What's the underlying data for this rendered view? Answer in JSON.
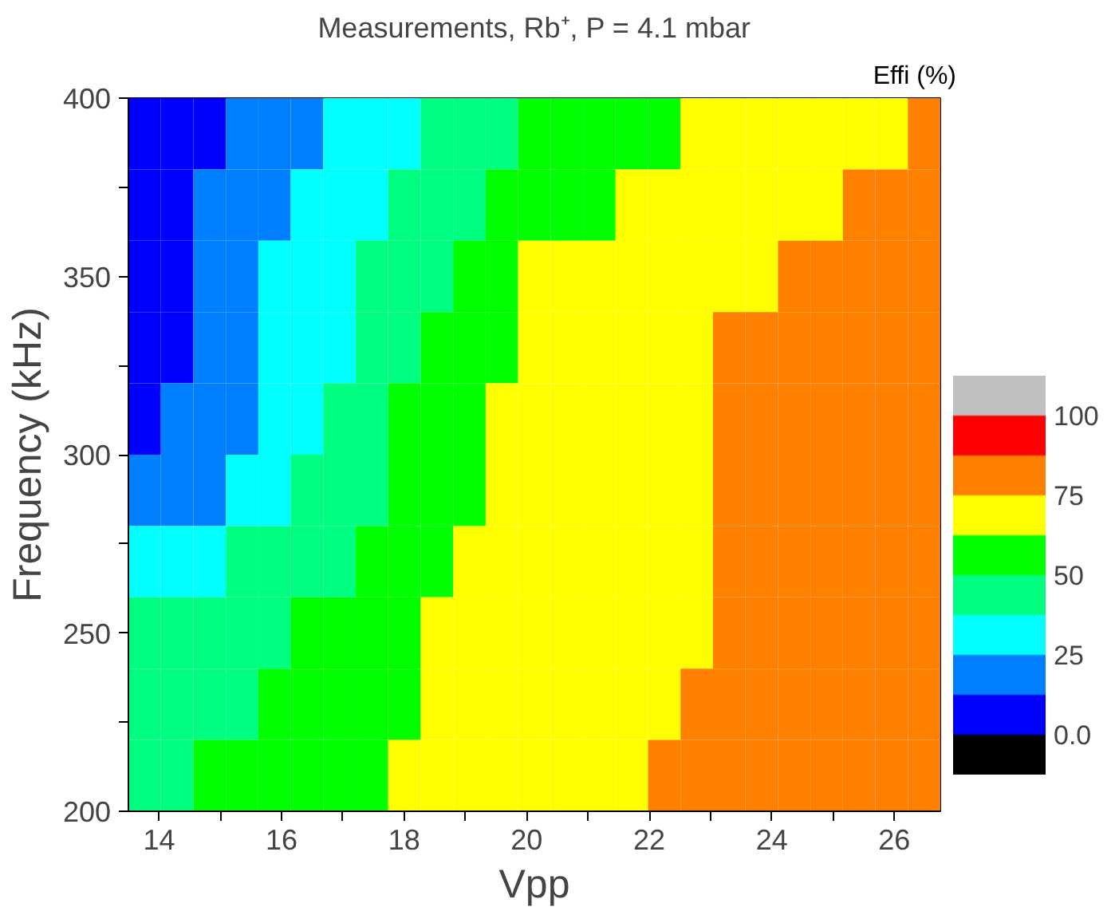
{
  "chart_data": {
    "type": "heatmap",
    "title": "Measurements, Rb⁺, P = 4.1 mbar",
    "xlabel": "Vpp",
    "ylabel": "Frequency (kHz)",
    "clabel": "Effi (%)",
    "xlim": [
      13.5,
      26.75
    ],
    "xticks": [
      14,
      {
        "value": 15,
        "label": null
      },
      16,
      {
        "value": 17,
        "label": null
      },
      18,
      {
        "value": 19,
        "label": null
      },
      20,
      {
        "value": 21,
        "label": null
      },
      22,
      {
        "value": 23,
        "label": null
      },
      24,
      {
        "value": 25,
        "label": null
      },
      26
    ],
    "ylim": [
      200,
      400
    ],
    "yticks": [
      200,
      {
        "value": 225,
        "label": null
      },
      250,
      {
        "value": 275,
        "label": null
      },
      300,
      {
        "value": 325,
        "label": null
      },
      350,
      {
        "value": 375,
        "label": null
      },
      400
    ],
    "clim": [
      -12.5,
      112.5
    ],
    "cticks": [
      {
        "value": 0,
        "label": "0.0"
      },
      25,
      50,
      75,
      100
    ],
    "colors": [
      "#000000",
      "#0000ff",
      "#0080ff",
      "#00ffff",
      "#00ff80",
      "#00ff00",
      "#ffff00",
      "#ff8000",
      "#ff0000",
      "#c0c0c0"
    ],
    "x": [
      13.765,
      14.295,
      14.825,
      15.355,
      15.885,
      16.415,
      16.945,
      17.475,
      18.005,
      18.535,
      19.065,
      19.595,
      20.125,
      20.655,
      21.185,
      21.715,
      22.245,
      22.775,
      23.305,
      23.835,
      24.365,
      24.895,
      25.425,
      25.955,
      26.485
    ],
    "y": [
      390,
      370,
      350,
      330,
      310,
      290,
      270,
      250,
      230,
      210
    ],
    "cells": [
      [
        6.25,
        6.25,
        6.25,
        18.75,
        18.75,
        18.75,
        31.25,
        31.25,
        31.25,
        43.75,
        43.75,
        43.75,
        56.25,
        56.25,
        56.25,
        56.25,
        56.25,
        68.75,
        68.75,
        68.75,
        68.75,
        68.75,
        68.75,
        68.75,
        81.25
      ],
      [
        6.25,
        6.25,
        18.75,
        18.75,
        18.75,
        31.25,
        31.25,
        31.25,
        43.75,
        43.75,
        43.75,
        56.25,
        56.25,
        56.25,
        56.25,
        68.75,
        68.75,
        68.75,
        68.75,
        68.75,
        68.75,
        68.75,
        81.25,
        81.25,
        81.25
      ],
      [
        6.25,
        6.25,
        18.75,
        18.75,
        31.25,
        31.25,
        31.25,
        43.75,
        43.75,
        43.75,
        56.25,
        56.25,
        68.75,
        68.75,
        68.75,
        68.75,
        68.75,
        68.75,
        68.75,
        68.75,
        81.25,
        81.25,
        81.25,
        81.25,
        81.25
      ],
      [
        6.25,
        6.25,
        18.75,
        18.75,
        31.25,
        31.25,
        31.25,
        43.75,
        43.75,
        56.25,
        56.25,
        56.25,
        68.75,
        68.75,
        68.75,
        68.75,
        68.75,
        68.75,
        81.25,
        81.25,
        81.25,
        81.25,
        81.25,
        81.25,
        81.25
      ],
      [
        6.25,
        18.75,
        18.75,
        18.75,
        31.25,
        31.25,
        43.75,
        43.75,
        56.25,
        56.25,
        56.25,
        68.75,
        68.75,
        68.75,
        68.75,
        68.75,
        68.75,
        68.75,
        81.25,
        81.25,
        81.25,
        81.25,
        81.25,
        81.25,
        81.25
      ],
      [
        18.75,
        18.75,
        18.75,
        31.25,
        31.25,
        43.75,
        43.75,
        43.75,
        56.25,
        56.25,
        56.25,
        68.75,
        68.75,
        68.75,
        68.75,
        68.75,
        68.75,
        68.75,
        81.25,
        81.25,
        81.25,
        81.25,
        81.25,
        81.25,
        81.25
      ],
      [
        31.25,
        31.25,
        31.25,
        43.75,
        43.75,
        43.75,
        43.75,
        56.25,
        56.25,
        56.25,
        68.75,
        68.75,
        68.75,
        68.75,
        68.75,
        68.75,
        68.75,
        68.75,
        81.25,
        81.25,
        81.25,
        81.25,
        81.25,
        81.25,
        81.25
      ],
      [
        43.75,
        43.75,
        43.75,
        43.75,
        43.75,
        56.25,
        56.25,
        56.25,
        56.25,
        68.75,
        68.75,
        68.75,
        68.75,
        68.75,
        68.75,
        68.75,
        68.75,
        68.75,
        81.25,
        81.25,
        81.25,
        81.25,
        81.25,
        81.25,
        81.25
      ],
      [
        43.75,
        43.75,
        43.75,
        43.75,
        56.25,
        56.25,
        56.25,
        56.25,
        56.25,
        68.75,
        68.75,
        68.75,
        68.75,
        68.75,
        68.75,
        68.75,
        68.75,
        81.25,
        81.25,
        81.25,
        81.25,
        81.25,
        81.25,
        81.25,
        81.25
      ],
      [
        43.75,
        43.75,
        56.25,
        56.25,
        56.25,
        56.25,
        56.25,
        56.25,
        68.75,
        68.75,
        68.75,
        68.75,
        68.75,
        68.75,
        68.75,
        68.75,
        81.25,
        81.25,
        81.25,
        81.25,
        81.25,
        81.25,
        81.25,
        81.25,
        81.25
      ]
    ]
  }
}
